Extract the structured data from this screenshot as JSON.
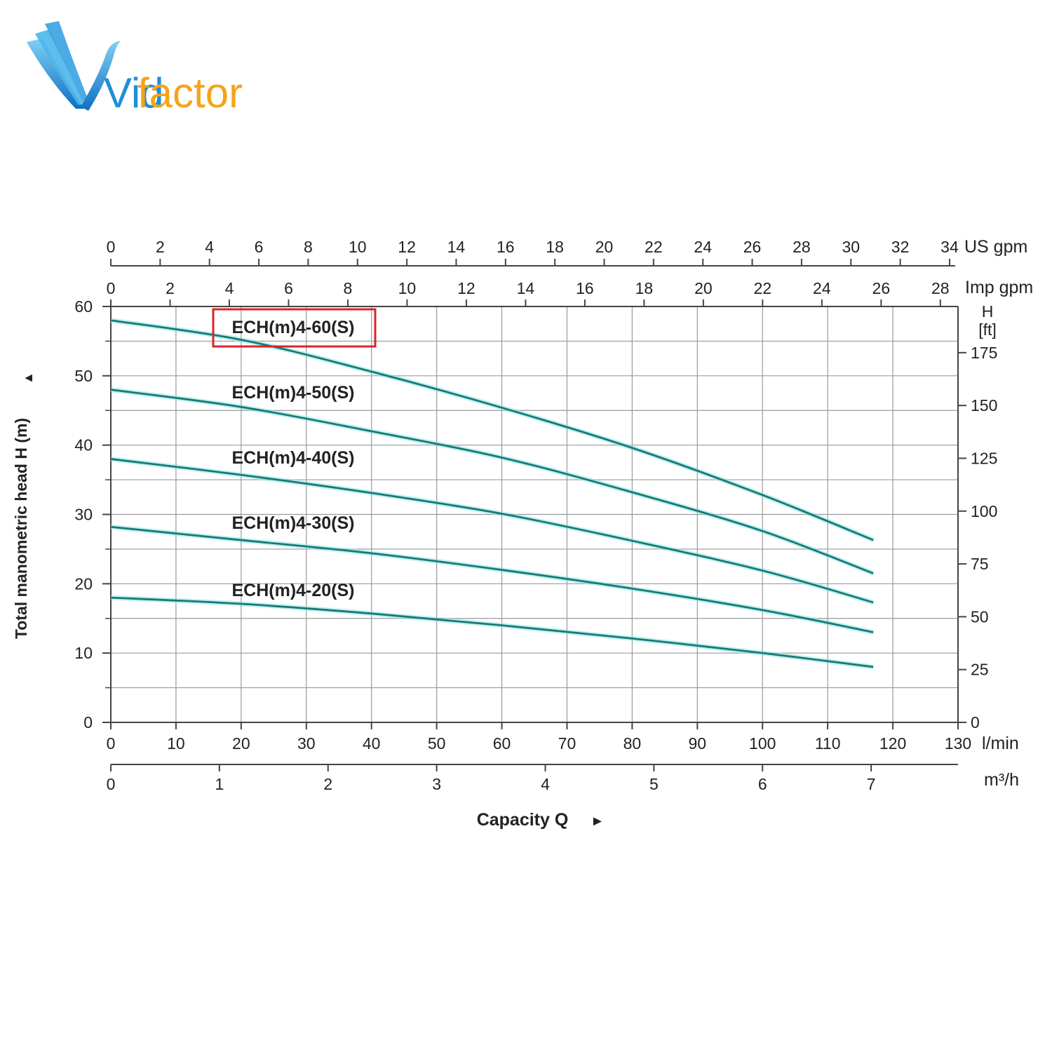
{
  "logo": {
    "text_vid": "Vid",
    "text_factor": "factor",
    "colors": {
      "blue": "#1f8fd6",
      "orange": "#f4a41c"
    }
  },
  "chart_data": {
    "type": "line",
    "x": [
      0,
      20,
      40,
      60,
      80,
      100,
      117
    ],
    "series": [
      {
        "name": "ECH(m)4-60(S)",
        "values": [
          58,
          55.2,
          50.6,
          45.4,
          39.6,
          32.8,
          26.3
        ],
        "highlighted": true
      },
      {
        "name": "ECH(m)4-50(S)",
        "values": [
          48,
          45.5,
          42,
          38.2,
          33.2,
          27.6,
          21.5
        ]
      },
      {
        "name": "ECH(m)4-40(S)",
        "values": [
          38,
          35.7,
          33.1,
          30.1,
          26.2,
          21.9,
          17.3
        ]
      },
      {
        "name": "ECH(m)4-30(S)",
        "values": [
          28.2,
          26.3,
          24.4,
          22,
          19.3,
          16.2,
          13.0
        ]
      },
      {
        "name": "ECH(m)4-20(S)",
        "values": [
          18,
          17.1,
          15.7,
          14,
          12.1,
          10,
          8.0
        ]
      }
    ],
    "xlim": [
      0,
      130
    ],
    "ylim": [
      0,
      60
    ],
    "xlabel": "Capacity Q",
    "ylabel": "Total manometric head H (m)",
    "line_color": "#177a78",
    "highlight_color": "#d8262a",
    "grid": true,
    "axes": {
      "left": {
        "ticks": [
          0,
          10,
          20,
          30,
          40,
          50,
          60
        ]
      },
      "bottom_lmin": {
        "ticks": [
          0,
          10,
          20,
          30,
          40,
          50,
          60,
          70,
          80,
          90,
          100,
          110,
          120,
          130
        ],
        "unit": "l/min"
      },
      "bottom_m3h": {
        "ticks": [
          0,
          1,
          2,
          3,
          4,
          5,
          6,
          7
        ],
        "unit": "m³/h"
      },
      "top_usgpm": {
        "ticks": [
          0,
          2,
          4,
          6,
          8,
          10,
          12,
          14,
          16,
          18,
          20,
          22,
          24,
          26,
          28,
          30,
          32,
          34
        ],
        "unit": "US gpm"
      },
      "top_impgpm": {
        "ticks": [
          0,
          2,
          4,
          6,
          8,
          10,
          12,
          14,
          16,
          18,
          20,
          22,
          24,
          26,
          28
        ],
        "unit": "Imp gpm"
      },
      "right_ft": {
        "ticks": [
          0,
          25,
          50,
          75,
          100,
          125,
          150,
          175
        ],
        "title_line1": "H",
        "title_line2": "[ft]"
      }
    }
  }
}
